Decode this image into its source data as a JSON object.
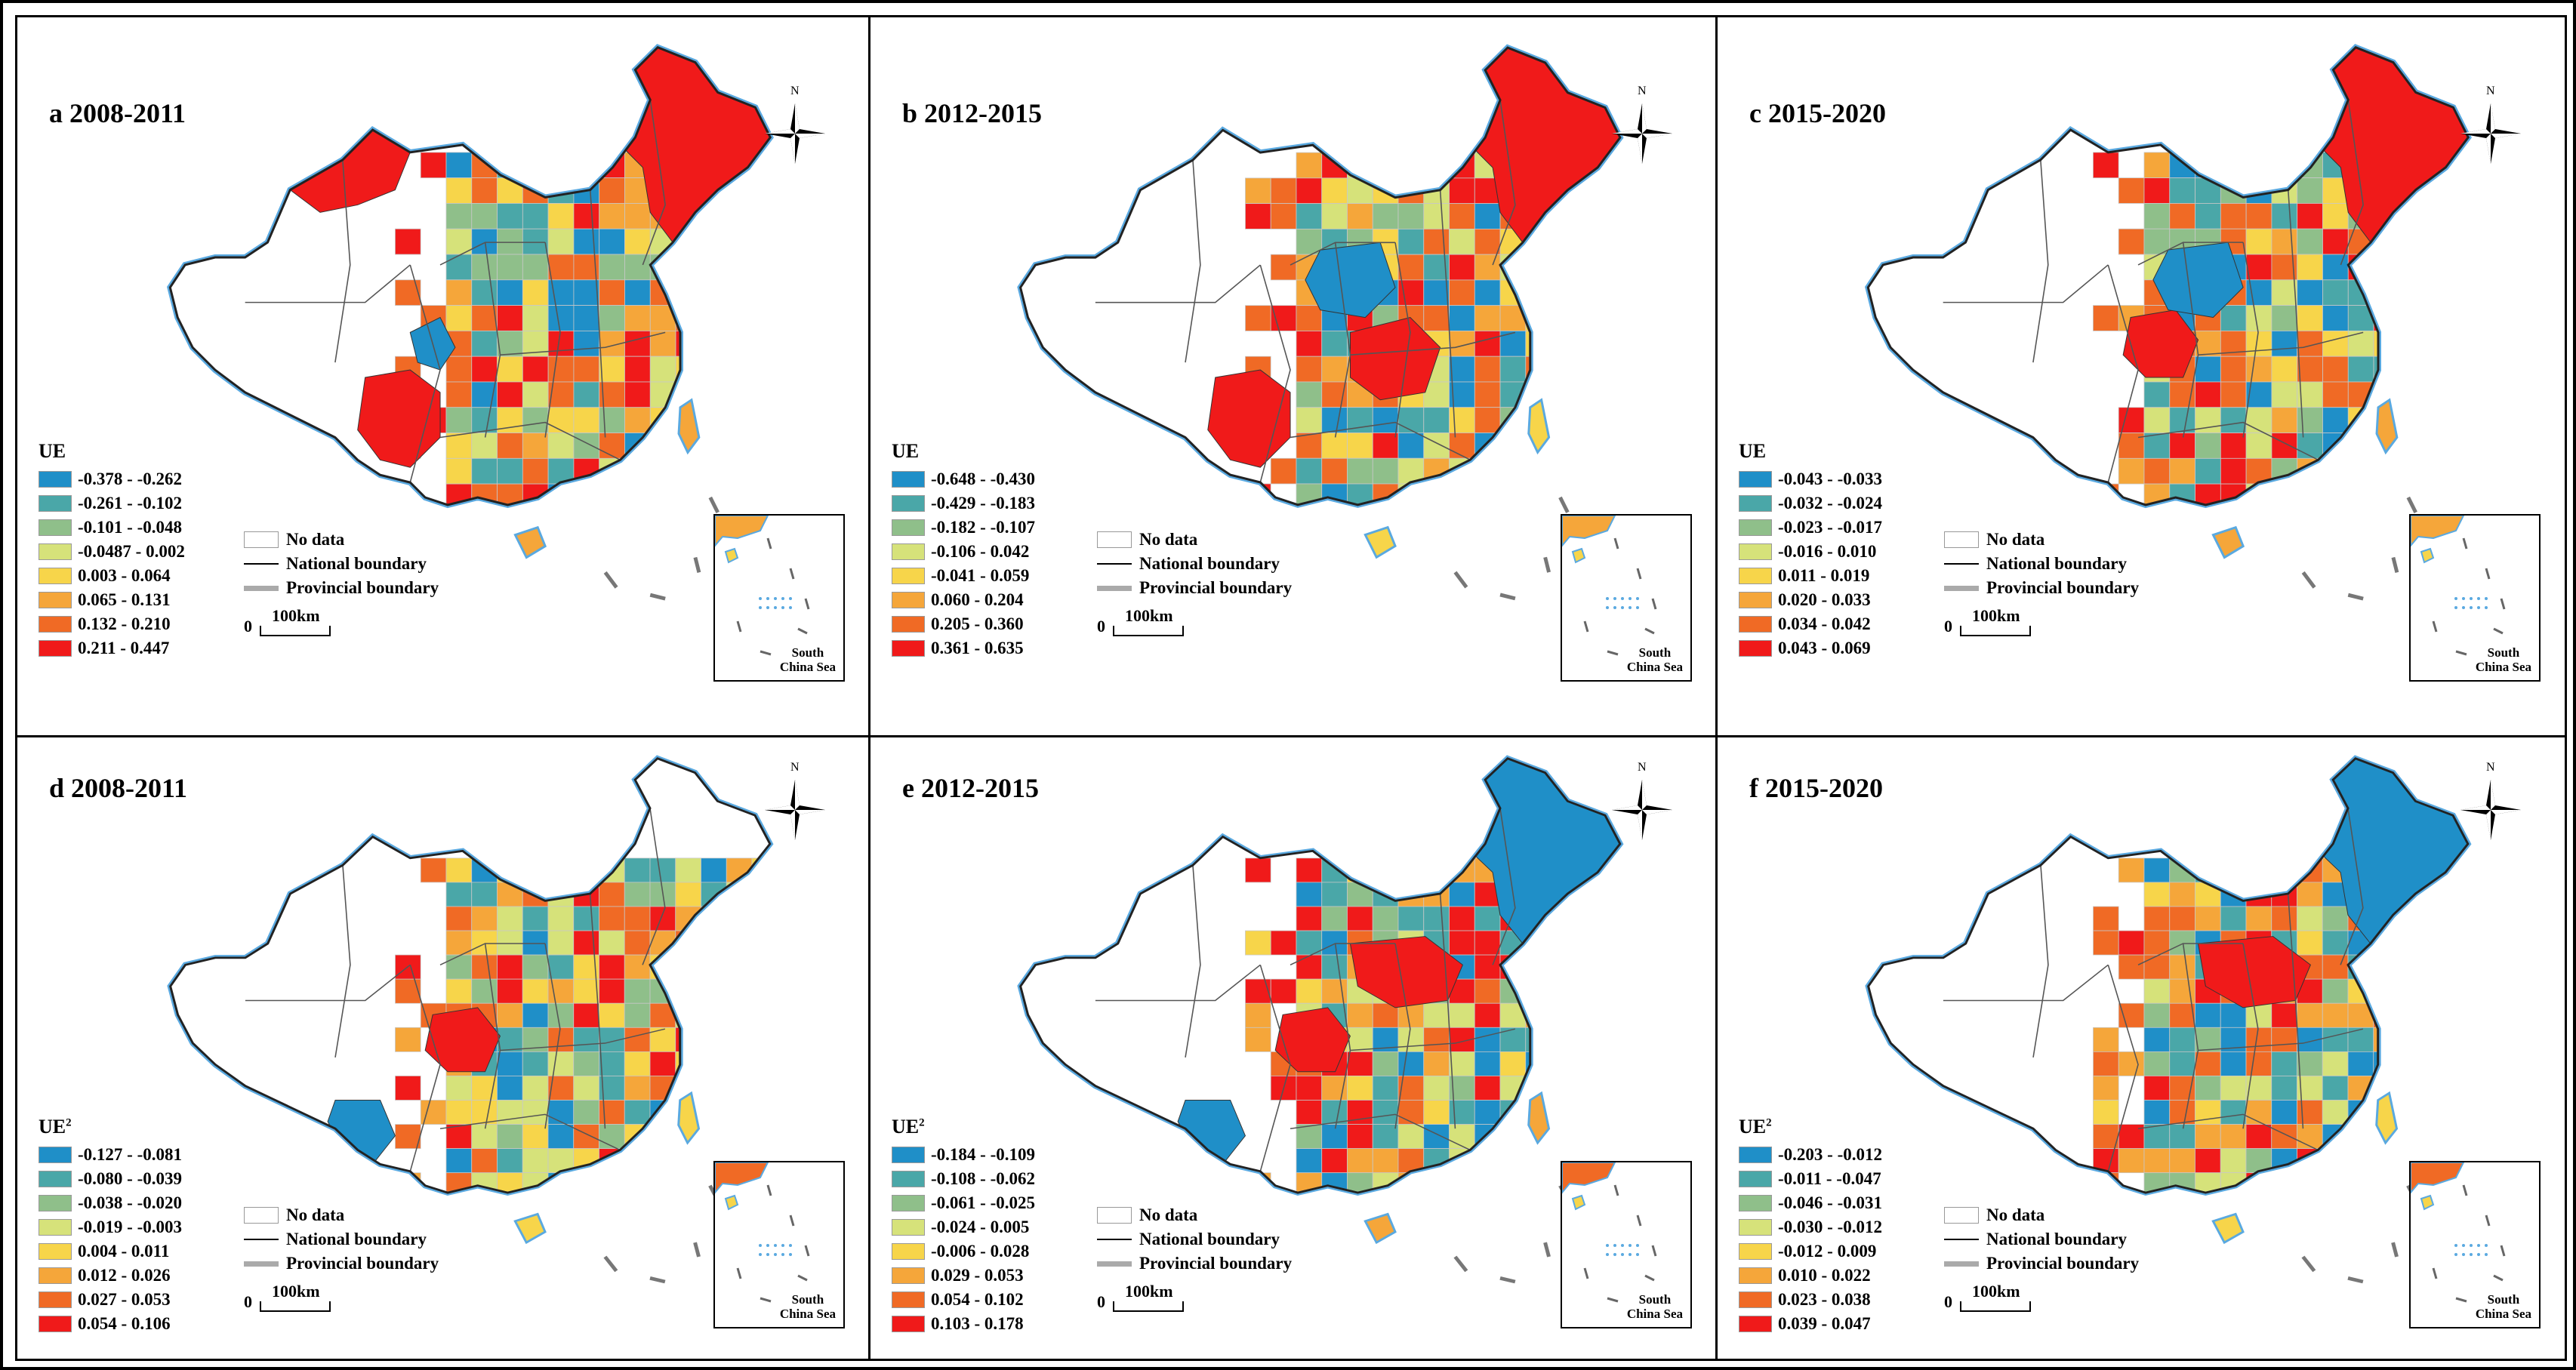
{
  "panels": [
    {
      "title": "a 2008-2011",
      "legend_title": "UE",
      "legend_sup": "",
      "classes": [
        "-0.378 - -0.262",
        "-0.261 - -0.102",
        "-0.101 - -0.048",
        "-0.0487 - 0.002",
        "0.003 - 0.064",
        "0.065 - 0.131",
        "0.132 - 0.210",
        "0.211 - 0.447"
      ],
      "high_regions": [
        "northeast",
        "xinjiang-north",
        "west-south"
      ],
      "low_regions": [
        "gansu-qinghai-strip"
      ]
    },
    {
      "title": "b 2012-2015",
      "legend_title": "UE",
      "legend_sup": "",
      "classes": [
        "-0.648 - -0.430",
        "-0.429 - -0.183",
        "-0.182 - -0.107",
        "-0.106 - 0.042",
        "-0.041 - 0.059",
        "0.060 - 0.204",
        "0.205 - 0.360",
        "0.361 - 0.635"
      ],
      "high_regions": [
        "northeast",
        "central",
        "west-south"
      ],
      "low_regions": [
        "north-central"
      ]
    },
    {
      "title": "c 2015-2020",
      "legend_title": "UE",
      "legend_sup": "",
      "classes": [
        "-0.043 - -0.033",
        "-0.032 - -0.024",
        "-0.023 - -0.017",
        "-0.016 - 0.010",
        "0.011 - 0.019",
        "0.020 - 0.033",
        "0.034 - 0.042",
        "0.043 - 0.069"
      ],
      "high_regions": [
        "northeast",
        "west-central"
      ],
      "low_regions": [
        "north-central"
      ]
    },
    {
      "title": "d 2008-2011",
      "legend_title": "UE",
      "legend_sup": "2",
      "classes": [
        "-0.127 - -0.081",
        "-0.080 - -0.039",
        "-0.038 - -0.020",
        "-0.019 - -0.003",
        "0.004 - 0.011",
        "0.012 - 0.026",
        "0.027 - 0.053",
        "0.054 - 0.106"
      ],
      "high_regions": [
        "west-central"
      ],
      "low_regions": [
        "southwest"
      ]
    },
    {
      "title": "e 2012-2015",
      "legend_title": "UE",
      "legend_sup": "2",
      "classes": [
        "-0.184 - -0.109",
        "-0.108 - -0.062",
        "-0.061 - -0.025",
        "-0.024 - 0.005",
        "-0.006 - 0.028",
        "0.029 - 0.053",
        "0.054 - 0.102",
        "0.103 - 0.178"
      ],
      "high_regions": [
        "west-central",
        "north"
      ],
      "low_regions": [
        "northeast",
        "southwest"
      ]
    },
    {
      "title": "f 2015-2020",
      "legend_title": "UE",
      "legend_sup": "2",
      "classes": [
        "-0.203 - -0.012",
        "-0.011 - -0.047",
        "-0.046 - -0.031",
        "-0.030 - -0.012",
        "-0.012 - 0.009",
        "0.010 - 0.022",
        "0.023 - 0.038",
        "0.039 - 0.047"
      ],
      "high_regions": [
        "north"
      ],
      "low_regions": [
        "northeast"
      ]
    }
  ],
  "legend_common": {
    "no_data": "No data",
    "national_boundary": "National boundary",
    "provincial_boundary": "Provincial boundary",
    "scale_zero": "0",
    "scale_label": "100km",
    "north_label": "N",
    "inset_label_1": "South",
    "inset_label_2": "China Sea"
  },
  "colors": {
    "class_colors": [
      "#1f8fc8",
      "#4aa7a8",
      "#8fbf8a",
      "#d6e27a",
      "#f7d54a",
      "#f5a63a",
      "#f06a25",
      "#f01a1a"
    ],
    "no_data": "#ffffff",
    "national_boundary": "#000000",
    "provincial_boundary": "#aaaaaa",
    "coast": "#5aa9e0"
  }
}
